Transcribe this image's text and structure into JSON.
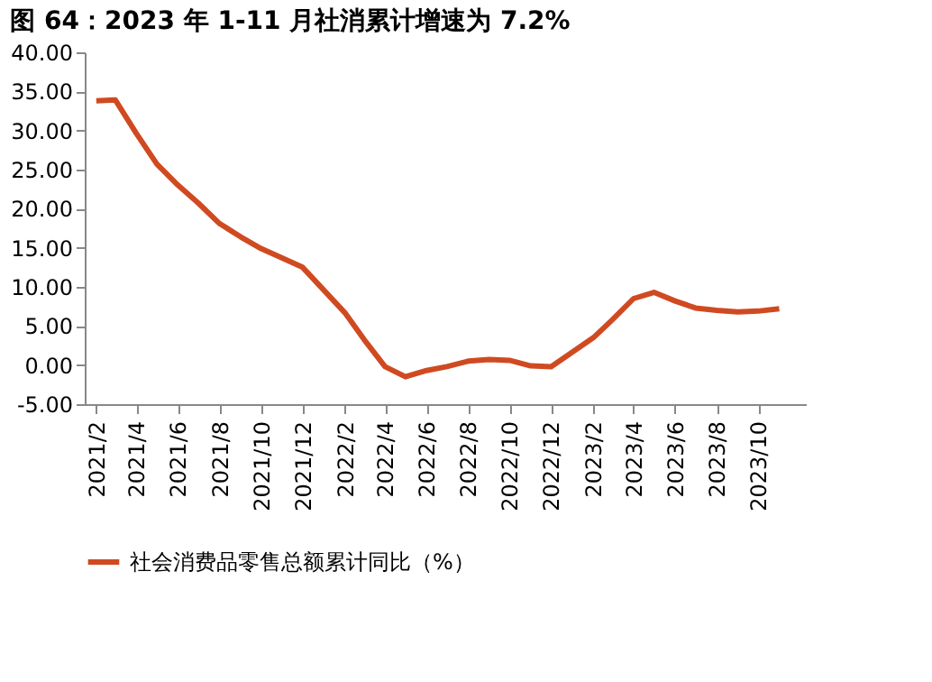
{
  "chart_data": {
    "type": "line",
    "title": "图 64：2023 年 1-11 月社消累计增速为 7.2%",
    "x": [
      "2021-02",
      "2021-03",
      "2021-04",
      "2021-05",
      "2021-06",
      "2021-07",
      "2021-08",
      "2021-09",
      "2021-10",
      "2021-11",
      "2021-12",
      "2022-02",
      "2022-03",
      "2022-04",
      "2022-05",
      "2022-06",
      "2022-07",
      "2022-08",
      "2022-09",
      "2022-10",
      "2022-11",
      "2022-12",
      "2023-02",
      "2023-03",
      "2023-04",
      "2023-05",
      "2023-06",
      "2023-07",
      "2023-08",
      "2023-09",
      "2023-10",
      "2023-11"
    ],
    "series": [
      {
        "name": "社会消费品零售总额累计同比（%）",
        "color": "#d04a21",
        "values": [
          33.8,
          33.9,
          29.6,
          25.7,
          23.0,
          20.7,
          18.1,
          16.4,
          14.9,
          13.7,
          12.5,
          6.7,
          3.3,
          -0.2,
          -1.5,
          -0.7,
          -0.2,
          0.5,
          0.7,
          0.6,
          -0.1,
          -0.2,
          3.5,
          5.8,
          8.5,
          9.3,
          8.2,
          7.3,
          7.0,
          6.8,
          6.9,
          7.2
        ]
      }
    ],
    "xlim": [
      "2021-01-15",
      "2023-12-10"
    ],
    "xticks": [
      {
        "value": "2021-02",
        "label": "2021/2"
      },
      {
        "value": "2021-04",
        "label": "2021/4"
      },
      {
        "value": "2021-06",
        "label": "2021/6"
      },
      {
        "value": "2021-08",
        "label": "2021/8"
      },
      {
        "value": "2021-10",
        "label": "2021/10"
      },
      {
        "value": "2021-12",
        "label": "2021/12"
      },
      {
        "value": "2022-02",
        "label": "2022/2"
      },
      {
        "value": "2022-04",
        "label": "2022/4"
      },
      {
        "value": "2022-06",
        "label": "2022/6"
      },
      {
        "value": "2022-08",
        "label": "2022/8"
      },
      {
        "value": "2022-10",
        "label": "2022/10"
      },
      {
        "value": "2022-12",
        "label": "2022/12"
      },
      {
        "value": "2023-02",
        "label": "2023/2"
      },
      {
        "value": "2023-04",
        "label": "2023/4"
      },
      {
        "value": "2023-06",
        "label": "2023/6"
      },
      {
        "value": "2023-08",
        "label": "2023/8"
      },
      {
        "value": "2023-10",
        "label": "2023/10"
      }
    ],
    "ylim": [
      -5,
      40
    ],
    "yticks": [
      {
        "value": -5,
        "label": "-5.00"
      },
      {
        "value": 0,
        "label": "0.00"
      },
      {
        "value": 5,
        "label": "5.00"
      },
      {
        "value": 10,
        "label": "10.00"
      },
      {
        "value": 15,
        "label": "15.00"
      },
      {
        "value": 20,
        "label": "20.00"
      },
      {
        "value": 25,
        "label": "25.00"
      },
      {
        "value": 30,
        "label": "30.00"
      },
      {
        "value": 35,
        "label": "35.00"
      },
      {
        "value": 40,
        "label": "40.00"
      }
    ],
    "grid": false,
    "legend": "bottom",
    "marker": "none",
    "line_style": "solid"
  }
}
